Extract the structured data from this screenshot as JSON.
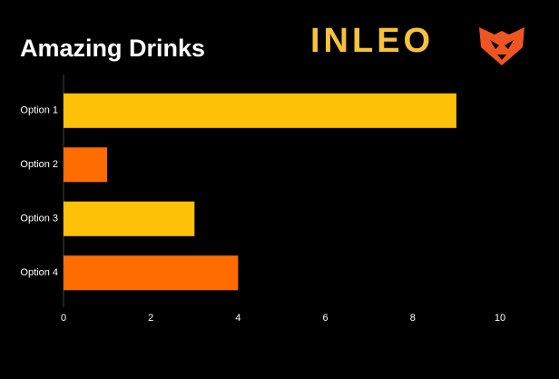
{
  "chart_data": {
    "type": "bar",
    "orientation": "horizontal",
    "title": "Amazing Drinks",
    "logo": "INLEO",
    "categories": [
      "Option 1",
      "Option 2",
      "Option 3",
      "Option 4"
    ],
    "values": [
      9,
      1,
      3,
      4
    ],
    "colors": [
      "#ffc107",
      "#ff6d00",
      "#ffc107",
      "#ff6d00"
    ],
    "xlim": [
      0,
      10
    ],
    "xticks": [
      0,
      2,
      4,
      6,
      8,
      10
    ],
    "grid": false
  }
}
